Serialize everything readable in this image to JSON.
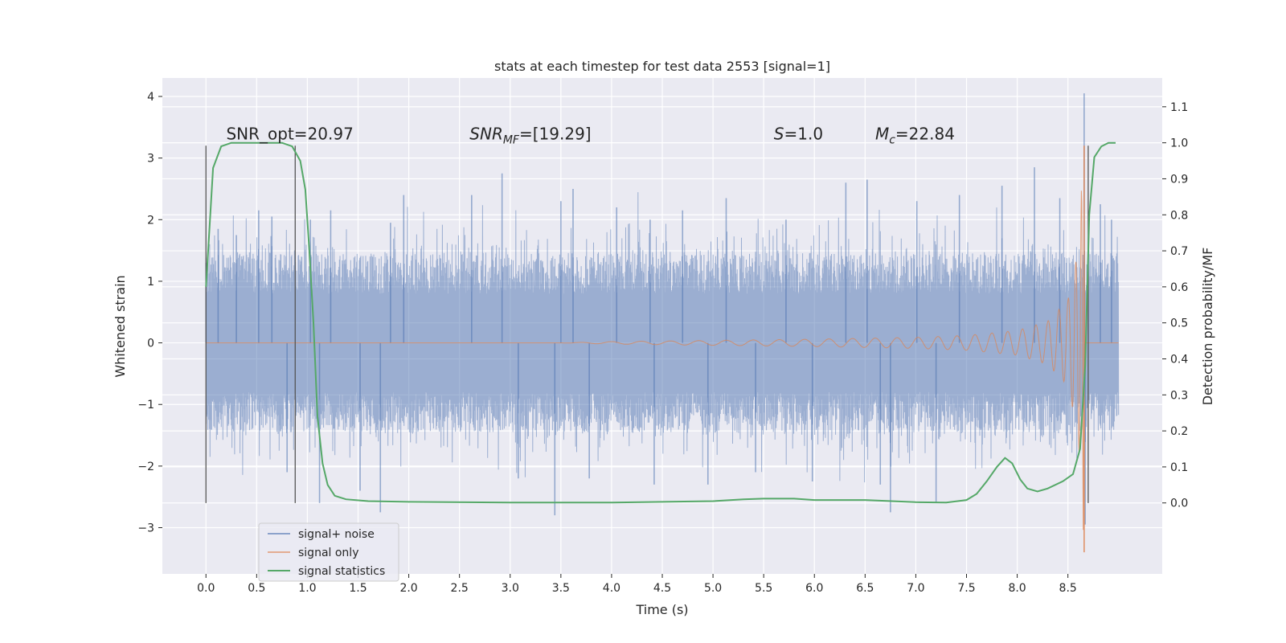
{
  "chart_data": {
    "type": "line",
    "title": "stats at each timestep for test data 2553 [signal=1]",
    "xlabel": "Time (s)",
    "ylabel": "Whitened strain",
    "ylabel_right": "Detection probability/MF",
    "xlim": [
      -0.43,
      9.43
    ],
    "ylim": [
      -3.75,
      4.3
    ],
    "ylim_right": [
      -0.197,
      1.18
    ],
    "xticks": [
      0.0,
      0.5,
      1.0,
      1.5,
      2.0,
      2.5,
      3.0,
      3.5,
      4.0,
      4.5,
      5.0,
      5.5,
      6.0,
      6.5,
      7.0,
      7.5,
      8.0,
      8.5
    ],
    "xtick_labels": [
      "0.0",
      "0.5",
      "1.0",
      "1.5",
      "2.0",
      "2.5",
      "3.0",
      "3.5",
      "4.0",
      "4.5",
      "5.0",
      "5.5",
      "6.0",
      "6.5",
      "7.0",
      "7.5",
      "8.0",
      "8.5"
    ],
    "yticks": [
      -3,
      -2,
      -1,
      0,
      1,
      2,
      3,
      4
    ],
    "ytick_labels": [
      "−3",
      "−2",
      "−1",
      "0",
      "1",
      "2",
      "3",
      "4"
    ],
    "yticks_right": [
      0.0,
      0.1,
      0.2,
      0.3,
      0.4,
      0.5,
      0.6,
      0.7,
      0.8,
      0.9,
      1.0,
      1.1
    ],
    "ytick_labels_right": [
      "0.0",
      "0.1",
      "0.2",
      "0.3",
      "0.4",
      "0.5",
      "0.6",
      "0.7",
      "0.8",
      "0.9",
      "1.0",
      "1.1"
    ],
    "grid": true,
    "legend_position": "lower-left",
    "annotations": [
      {
        "text": "SNR_opt=20.97",
        "x": 0.2,
        "y": 3.3
      },
      {
        "text": "SNR",
        "sub": "MF",
        "suffix": "=[19.29]",
        "italic": true,
        "x": 2.6,
        "y": 3.3
      },
      {
        "text": "S",
        "suffix": "=1.0",
        "italic": true,
        "x": 5.6,
        "y": 3.3
      },
      {
        "text": "M",
        "sub": "c",
        "suffix": "=22.84",
        "italic": true,
        "x": 6.6,
        "y": 3.3
      }
    ],
    "vertical_markers": [
      {
        "x": 0.0,
        "y0": -2.6,
        "y1": 3.2
      },
      {
        "x": 0.88,
        "y0": -2.6,
        "y1": 3.2
      },
      {
        "x": 8.7,
        "y0": -2.6,
        "y1": 3.2
      }
    ],
    "series": [
      {
        "name": "signal+ noise",
        "color": "#4c72b0",
        "kind": "noisy-strain",
        "t_start": 0.0,
        "t_end": 9.0,
        "core_amplitude": 1.45,
        "spikes": [
          {
            "x": 0.0,
            "y": 1.3
          },
          {
            "x": 0.12,
            "y": 1.85
          },
          {
            "x": 0.3,
            "y": 1.75
          },
          {
            "x": 0.52,
            "y": 2.15
          },
          {
            "x": 0.65,
            "y": 2.05
          },
          {
            "x": 0.8,
            "y": -2.1
          },
          {
            "x": 1.03,
            "y": 2.0
          },
          {
            "x": 1.12,
            "y": -2.6
          },
          {
            "x": 1.23,
            "y": 2.15
          },
          {
            "x": 1.52,
            "y": -2.4
          },
          {
            "x": 1.72,
            "y": -2.75
          },
          {
            "x": 1.82,
            "y": 1.95
          },
          {
            "x": 1.95,
            "y": 2.4
          },
          {
            "x": 2.62,
            "y": 2.4
          },
          {
            "x": 2.92,
            "y": 2.75
          },
          {
            "x": 3.08,
            "y": -2.2
          },
          {
            "x": 3.44,
            "y": -2.8
          },
          {
            "x": 3.5,
            "y": 2.3
          },
          {
            "x": 3.62,
            "y": 2.5
          },
          {
            "x": 3.78,
            "y": -2.2
          },
          {
            "x": 4.05,
            "y": 2.2
          },
          {
            "x": 4.38,
            "y": 2.0
          },
          {
            "x": 4.42,
            "y": -2.3
          },
          {
            "x": 4.7,
            "y": 2.15
          },
          {
            "x": 4.95,
            "y": -2.3
          },
          {
            "x": 5.13,
            "y": 2.35
          },
          {
            "x": 5.42,
            "y": -2.1
          },
          {
            "x": 5.72,
            "y": 2.0
          },
          {
            "x": 5.98,
            "y": -2.25
          },
          {
            "x": 6.31,
            "y": 2.6
          },
          {
            "x": 6.52,
            "y": 2.65
          },
          {
            "x": 6.65,
            "y": -2.3
          },
          {
            "x": 6.75,
            "y": -2.75
          },
          {
            "x": 7.01,
            "y": 2.3
          },
          {
            "x": 7.2,
            "y": -2.6
          },
          {
            "x": 7.43,
            "y": 2.4
          },
          {
            "x": 7.85,
            "y": 2.55
          },
          {
            "x": 8.17,
            "y": 2.85
          },
          {
            "x": 8.42,
            "y": 2.35
          },
          {
            "x": 8.66,
            "y": 4.05
          },
          {
            "x": 8.67,
            "y": -2.95
          },
          {
            "x": 8.82,
            "y": 2.25
          },
          {
            "x": 8.93,
            "y": 2.0
          }
        ]
      },
      {
        "name": "signal only",
        "color": "#dd8452",
        "kind": "chirp",
        "t_start": 0.0,
        "t_end": 9.0,
        "merger_time": 8.66,
        "peak_max": 3.2,
        "peak_min": -3.4,
        "points": [
          {
            "x": 0.0,
            "amplitude": 0.0
          },
          {
            "x": 3.5,
            "amplitude": 0.0
          },
          {
            "x": 4.0,
            "amplitude": 0.02
          },
          {
            "x": 5.0,
            "amplitude": 0.04
          },
          {
            "x": 6.0,
            "amplitude": 0.06
          },
          {
            "x": 7.0,
            "amplitude": 0.09
          },
          {
            "x": 7.5,
            "amplitude": 0.12
          },
          {
            "x": 8.0,
            "amplitude": 0.2
          },
          {
            "x": 8.3,
            "amplitude": 0.35
          },
          {
            "x": 8.5,
            "amplitude": 0.7
          },
          {
            "x": 8.6,
            "amplitude": 1.5
          },
          {
            "x": 8.66,
            "amplitude": 3.3
          },
          {
            "x": 8.68,
            "amplitude": 0.0
          },
          {
            "x": 9.0,
            "amplitude": 0.0
          }
        ]
      },
      {
        "name": "signal statistics",
        "color": "#55a868",
        "kind": "probability",
        "axis": "right",
        "points": [
          {
            "x": 0.0,
            "y": 0.6
          },
          {
            "x": 0.07,
            "y": 0.93
          },
          {
            "x": 0.15,
            "y": 0.99
          },
          {
            "x": 0.25,
            "y": 1.0
          },
          {
            "x": 0.5,
            "y": 1.0
          },
          {
            "x": 0.75,
            "y": 1.0
          },
          {
            "x": 0.85,
            "y": 0.99
          },
          {
            "x": 0.93,
            "y": 0.95
          },
          {
            "x": 0.98,
            "y": 0.87
          },
          {
            "x": 1.02,
            "y": 0.7
          },
          {
            "x": 1.06,
            "y": 0.5
          },
          {
            "x": 1.1,
            "y": 0.24
          },
          {
            "x": 1.15,
            "y": 0.11
          },
          {
            "x": 1.2,
            "y": 0.05
          },
          {
            "x": 1.27,
            "y": 0.02
          },
          {
            "x": 1.38,
            "y": 0.01
          },
          {
            "x": 1.6,
            "y": 0.005
          },
          {
            "x": 2.0,
            "y": 0.003
          },
          {
            "x": 3.0,
            "y": 0.001
          },
          {
            "x": 4.0,
            "y": 0.001
          },
          {
            "x": 4.5,
            "y": 0.003
          },
          {
            "x": 5.0,
            "y": 0.005
          },
          {
            "x": 5.3,
            "y": 0.01
          },
          {
            "x": 5.5,
            "y": 0.012
          },
          {
            "x": 5.8,
            "y": 0.012
          },
          {
            "x": 6.0,
            "y": 0.008
          },
          {
            "x": 6.5,
            "y": 0.008
          },
          {
            "x": 7.0,
            "y": 0.002
          },
          {
            "x": 7.3,
            "y": 0.001
          },
          {
            "x": 7.5,
            "y": 0.008
          },
          {
            "x": 7.6,
            "y": 0.025
          },
          {
            "x": 7.7,
            "y": 0.06
          },
          {
            "x": 7.8,
            "y": 0.1
          },
          {
            "x": 7.88,
            "y": 0.125
          },
          {
            "x": 7.95,
            "y": 0.11
          },
          {
            "x": 8.03,
            "y": 0.065
          },
          {
            "x": 8.1,
            "y": 0.04
          },
          {
            "x": 8.2,
            "y": 0.032
          },
          {
            "x": 8.3,
            "y": 0.04
          },
          {
            "x": 8.45,
            "y": 0.06
          },
          {
            "x": 8.55,
            "y": 0.08
          },
          {
            "x": 8.62,
            "y": 0.15
          },
          {
            "x": 8.67,
            "y": 0.38
          },
          {
            "x": 8.71,
            "y": 0.8
          },
          {
            "x": 8.76,
            "y": 0.96
          },
          {
            "x": 8.83,
            "y": 0.99
          },
          {
            "x": 8.9,
            "y": 1.0
          },
          {
            "x": 8.97,
            "y": 1.0
          }
        ]
      }
    ]
  }
}
